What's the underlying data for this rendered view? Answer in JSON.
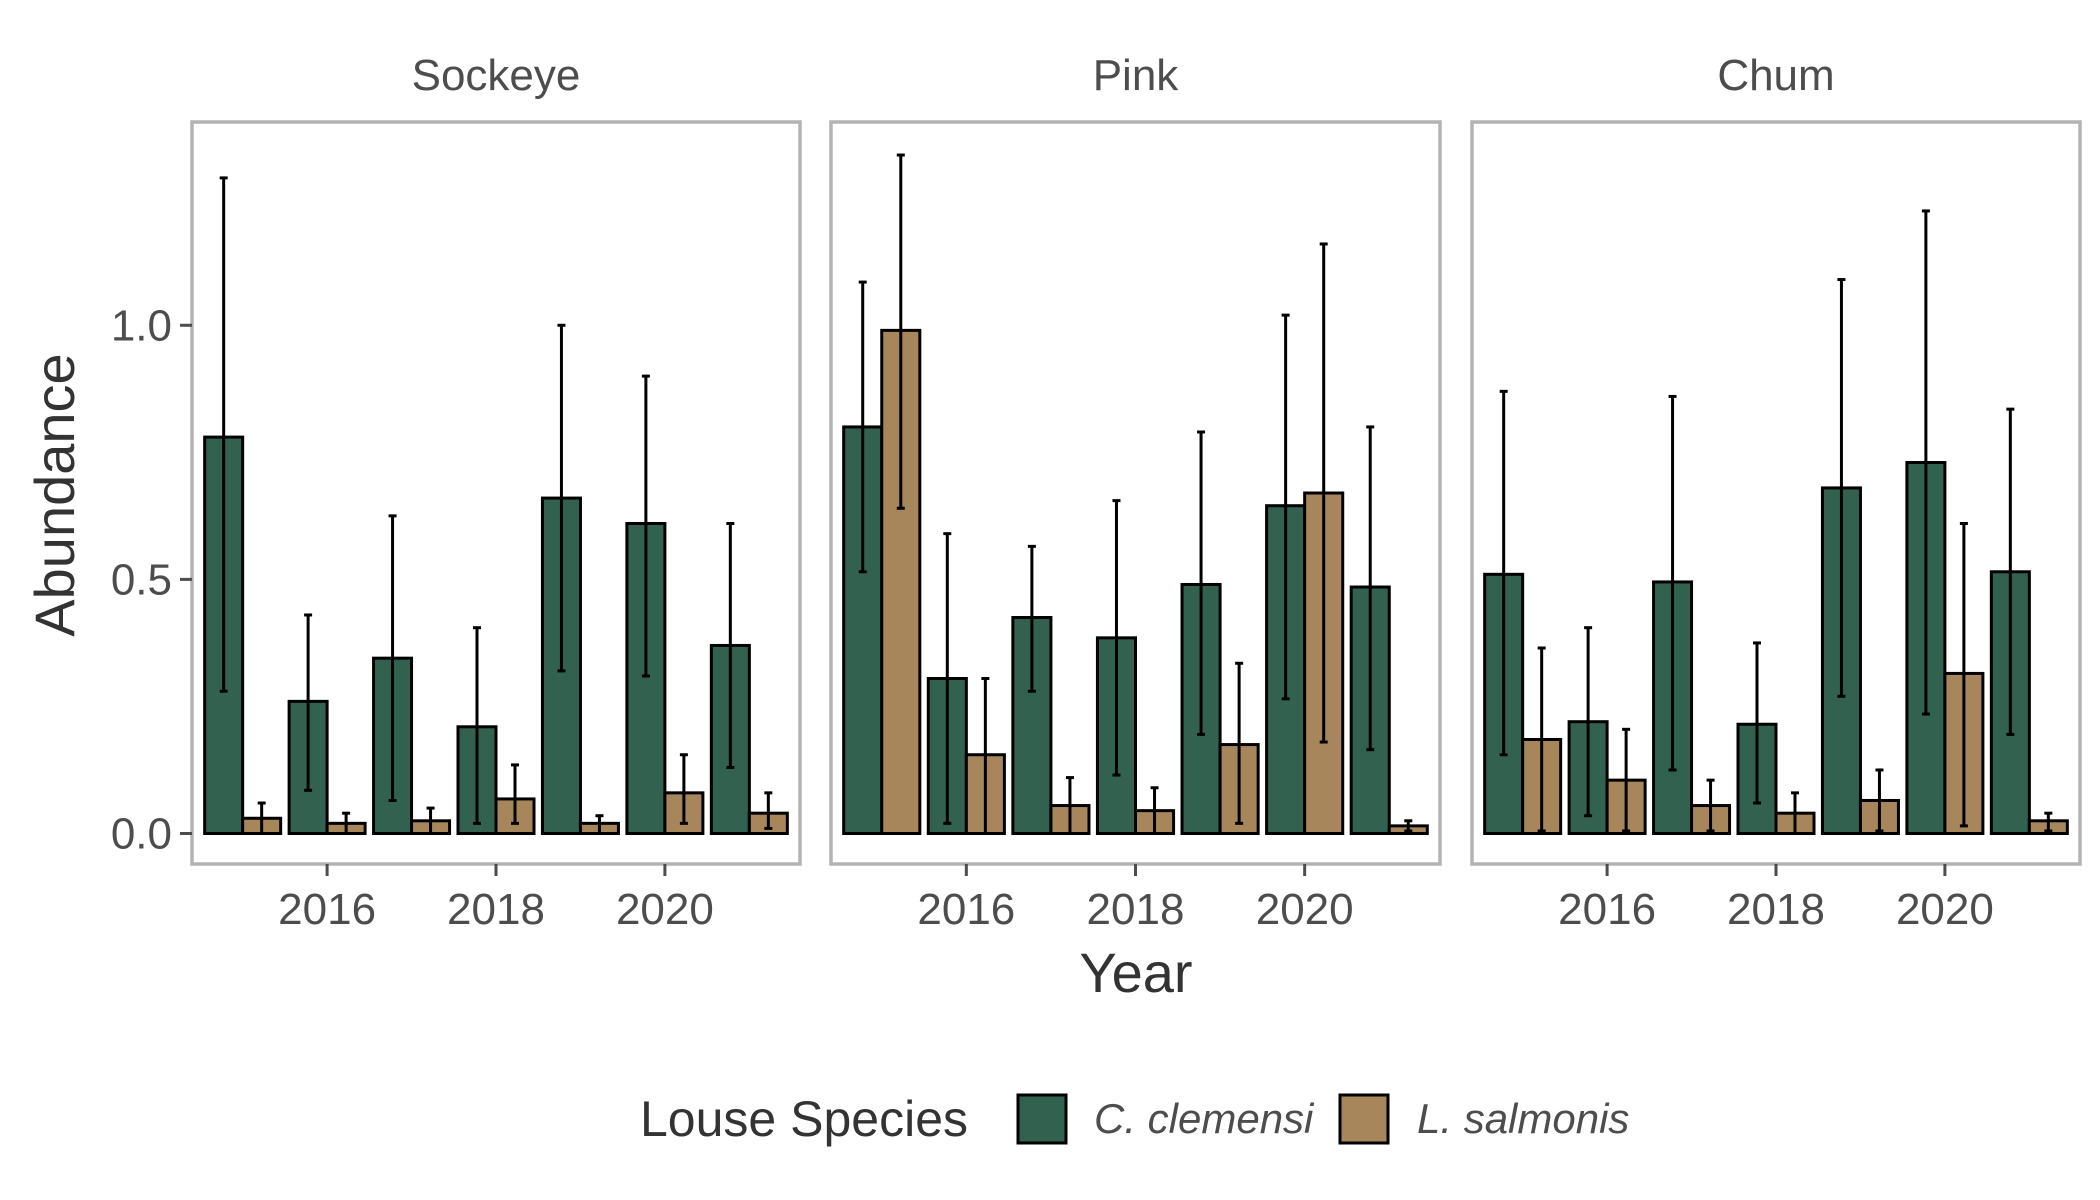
{
  "chart_data": {
    "type": "bar",
    "xlabel": "Year",
    "ylabel": "Abundance",
    "x_ticks": [
      "2016",
      "2018",
      "2020"
    ],
    "x_tick_values": [
      2016,
      2018,
      2020
    ],
    "y_ticks": [
      "0.0",
      "0.5",
      "1.0"
    ],
    "y_tick_values": [
      0.0,
      0.5,
      1.0
    ],
    "ylim": [
      -0.06,
      1.4
    ],
    "xlim": [
      2014.4,
      2021.6
    ],
    "grid": false,
    "legend_position": "bottom",
    "years": [
      2015,
      2016,
      2017,
      2018,
      2019,
      2020,
      2021
    ],
    "legend": {
      "title": "Louse Species",
      "items": [
        {
          "label": "C. clemensi",
          "color": "#33614f"
        },
        {
          "label": "L. salmonis",
          "color": "#a6865a"
        }
      ]
    },
    "facets": [
      {
        "title": "Sockeye",
        "series": [
          {
            "name": "C. clemensi",
            "values": [
              0.78,
              0.26,
              0.345,
              0.21,
              0.66,
              0.61,
              0.37
            ],
            "lower": [
              0.28,
              0.085,
              0.065,
              0.02,
              0.32,
              0.31,
              0.13
            ],
            "upper": [
              1.29,
              0.43,
              0.625,
              0.405,
              1.0,
              0.9,
              0.61
            ]
          },
          {
            "name": "L. salmonis",
            "values": [
              0.03,
              0.02,
              0.025,
              0.068,
              0.02,
              0.08,
              0.04
            ],
            "lower": [
              0.0,
              0.0,
              0.0,
              0.02,
              0.0,
              0.02,
              0.01
            ],
            "upper": [
              0.06,
              0.04,
              0.05,
              0.135,
              0.035,
              0.155,
              0.08
            ]
          }
        ]
      },
      {
        "title": "Pink",
        "series": [
          {
            "name": "C. clemensi",
            "values": [
              0.8,
              0.305,
              0.425,
              0.385,
              0.49,
              0.645,
              0.485
            ],
            "lower": [
              0.515,
              0.02,
              0.28,
              0.115,
              0.195,
              0.265,
              0.165
            ],
            "upper": [
              1.085,
              0.59,
              0.565,
              0.655,
              0.79,
              1.02,
              0.8
            ]
          },
          {
            "name": "L. salmonis",
            "values": [
              0.99,
              0.155,
              0.055,
              0.045,
              0.175,
              0.67,
              0.015
            ],
            "lower": [
              0.64,
              0.0,
              0.0,
              0.0,
              0.02,
              0.18,
              0.005
            ],
            "upper": [
              1.335,
              0.305,
              0.11,
              0.09,
              0.335,
              1.16,
              0.025
            ]
          }
        ]
      },
      {
        "title": "Chum",
        "series": [
          {
            "name": "C. clemensi",
            "values": [
              0.51,
              0.22,
              0.495,
              0.215,
              0.68,
              0.73,
              0.515
            ],
            "lower": [
              0.155,
              0.035,
              0.125,
              0.06,
              0.27,
              0.235,
              0.195
            ],
            "upper": [
              0.87,
              0.405,
              0.86,
              0.375,
              1.09,
              1.225,
              0.835
            ]
          },
          {
            "name": "L. salmonis",
            "values": [
              0.185,
              0.105,
              0.055,
              0.04,
              0.065,
              0.315,
              0.025
            ],
            "lower": [
              0.005,
              0.005,
              0.005,
              0.0,
              0.005,
              0.015,
              0.005
            ],
            "upper": [
              0.365,
              0.205,
              0.105,
              0.08,
              0.125,
              0.61,
              0.04
            ]
          }
        ]
      }
    ]
  }
}
